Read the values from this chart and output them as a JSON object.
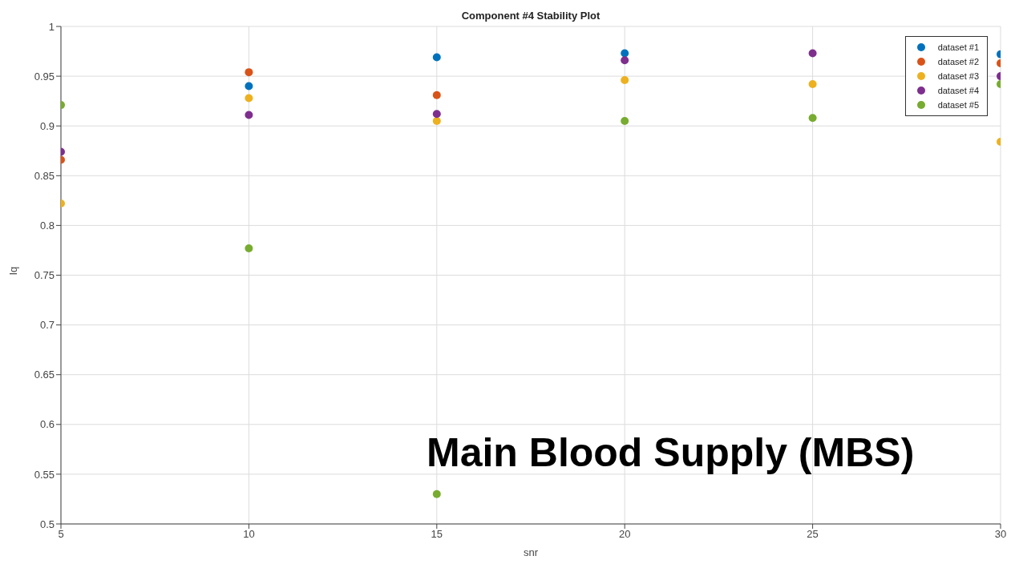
{
  "chart_data": {
    "type": "scatter",
    "title": "Component #4 Stability Plot",
    "xlabel": "snr",
    "ylabel": "Iq",
    "x": [
      5,
      10,
      15,
      20,
      25,
      30
    ],
    "series": [
      {
        "name": "dataset #1",
        "color": "#0072bd",
        "values": [
          null,
          0.94,
          0.969,
          0.973,
          null,
          0.972
        ]
      },
      {
        "name": "dataset #2",
        "color": "#d95319",
        "values": [
          0.866,
          0.954,
          0.931,
          null,
          null,
          0.963
        ]
      },
      {
        "name": "dataset #3",
        "color": "#edb120",
        "values": [
          0.822,
          0.928,
          0.905,
          0.946,
          0.942,
          0.884
        ]
      },
      {
        "name": "dataset #4",
        "color": "#7e2f8e",
        "values": [
          0.874,
          0.911,
          0.912,
          0.966,
          0.973,
          0.95
        ]
      },
      {
        "name": "dataset #5",
        "color": "#77ac30",
        "values": [
          0.921,
          0.777,
          0.53,
          0.905,
          0.908,
          0.942
        ]
      }
    ],
    "xlim": [
      5,
      30
    ],
    "xticks": [
      5,
      10,
      15,
      20,
      25,
      30
    ],
    "ylim": [
      0.5,
      1
    ],
    "yticks": [
      0.5,
      0.55,
      0.6,
      0.65,
      0.7,
      0.75,
      0.8,
      0.85,
      0.9,
      0.95,
      1
    ],
    "grid": true,
    "legend": "top right",
    "marker": "circle",
    "annotations": [
      "Main Blood Supply (MBS)"
    ]
  }
}
